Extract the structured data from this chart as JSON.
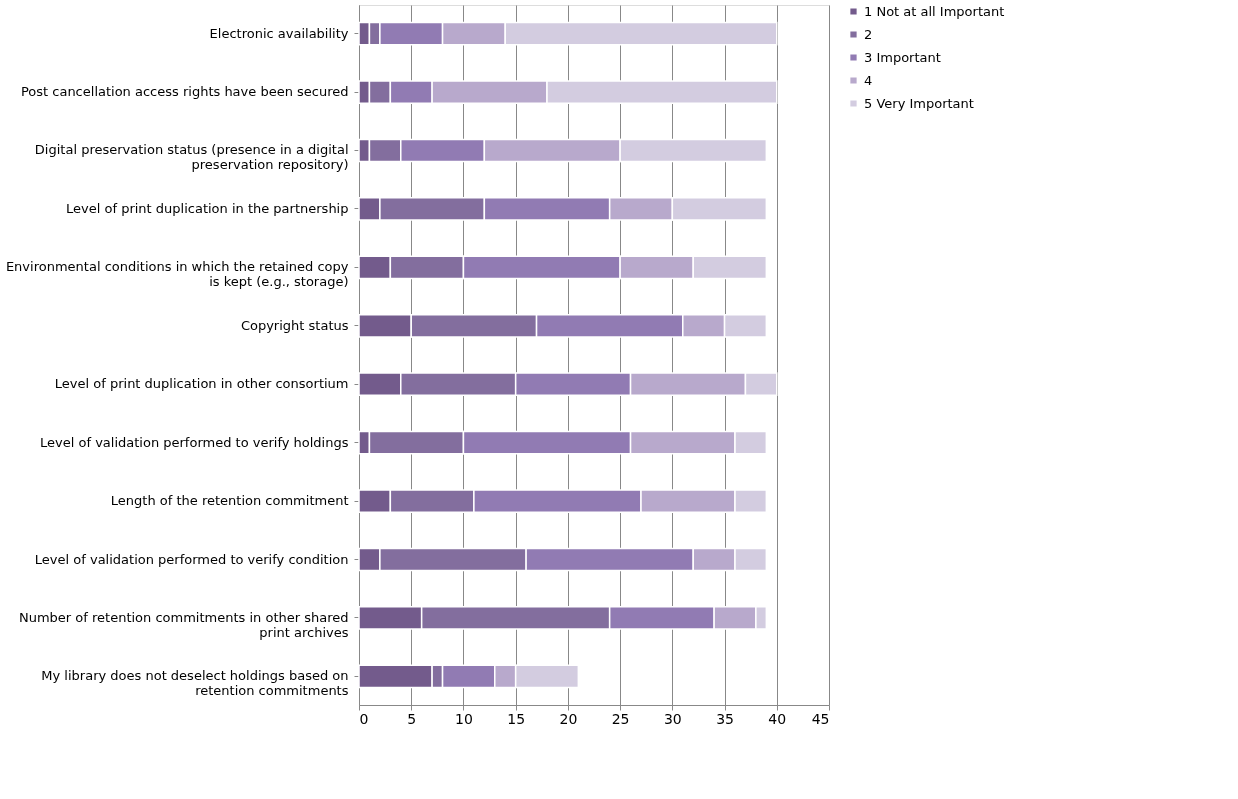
{
  "chart_data": {
    "type": "bar",
    "orientation": "horizontal",
    "stacked": true,
    "categories": [
      "Electronic availability",
      "Post cancellation access rights have been secured",
      "Digital preservation status (presence in a digital preservation repository)",
      "Level of print duplication in the partnership",
      "Environmental conditions in which the retained copy is kept (e.g., storage)",
      "Copyright status",
      "Level of print duplication in other consortium",
      "Level of validation performed to verify holdings",
      "Length of the retention commitment",
      "Level of validation performed to verify condition",
      "Number of retention commitments in other shared print archives",
      "My library does not deselect holdings based on retention commitments"
    ],
    "series": [
      {
        "name": "1 Not at all Important",
        "color": "#735b8c",
        "values": [
          1,
          1,
          1,
          2,
          3,
          5,
          4,
          1,
          3,
          2,
          6,
          7
        ]
      },
      {
        "name": "2",
        "color": "#836e9e",
        "values": [
          1,
          2,
          3,
          10,
          7,
          12,
          11,
          9,
          8,
          14,
          18,
          1
        ]
      },
      {
        "name": "3 Important",
        "color": "#917bb3",
        "values": [
          6,
          4,
          8,
          12,
          15,
          14,
          11,
          16,
          16,
          16,
          10,
          5
        ]
      },
      {
        "name": "4",
        "color": "#b8a9cc",
        "values": [
          6,
          11,
          13,
          6,
          7,
          4,
          11,
          10,
          9,
          4,
          4,
          2
        ]
      },
      {
        "name": "5 Very Important",
        "color": "#d3cce0",
        "values": [
          26,
          22,
          14,
          9,
          7,
          4,
          3,
          3,
          3,
          3,
          1,
          6
        ]
      }
    ],
    "xlim": [
      0,
      45
    ],
    "xticks": [
      0,
      5,
      10,
      15,
      20,
      25,
      30,
      35,
      40,
      45
    ],
    "grid": "x",
    "legend": "right"
  }
}
